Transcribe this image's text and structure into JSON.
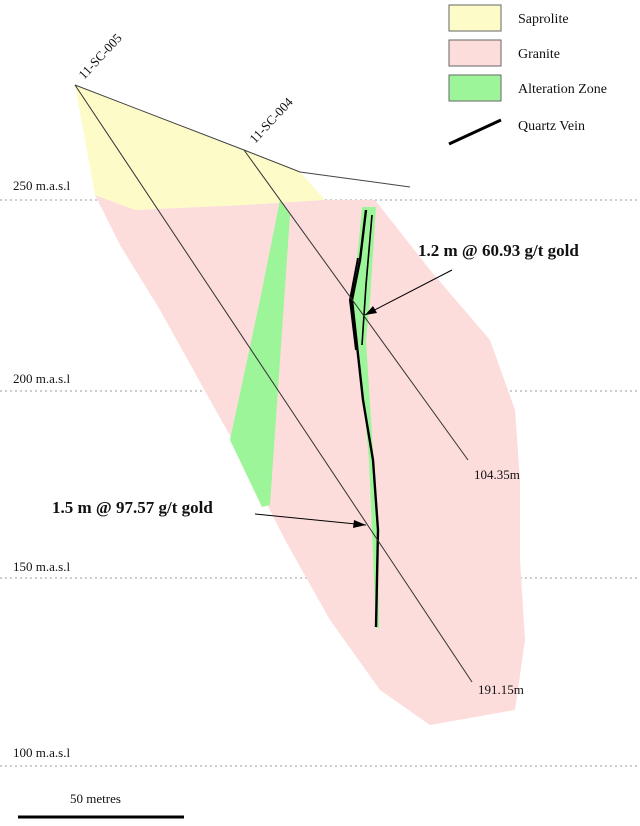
{
  "legend": {
    "saprolite": "Saprolite",
    "granite": "Granite",
    "alteration": "Alteration Zone",
    "quartz_vein": "Quartz Vein"
  },
  "colors": {
    "saprolite": "#fdfcc8",
    "granite": "#fddcdc",
    "alteration": "#9df59a",
    "quartz_vein": "#000000",
    "level_line": "#999999",
    "drill_trace": "#333333"
  },
  "levels": [
    "250 m.a.s.l",
    "200 m.a.s.l",
    "150 m.a.s.l",
    "100 m.a.s.l"
  ],
  "drillholes": [
    {
      "name": "11-SC-005",
      "end_depth": "191.15m"
    },
    {
      "name": "11-SC-004",
      "end_depth": "104.35m"
    }
  ],
  "intercepts": [
    {
      "label": "1.2 m @ 60.93 g/t gold"
    },
    {
      "label": "1.5 m @ 97.57 g/t gold"
    }
  ],
  "scale_bar": {
    "label": "50 metres"
  }
}
